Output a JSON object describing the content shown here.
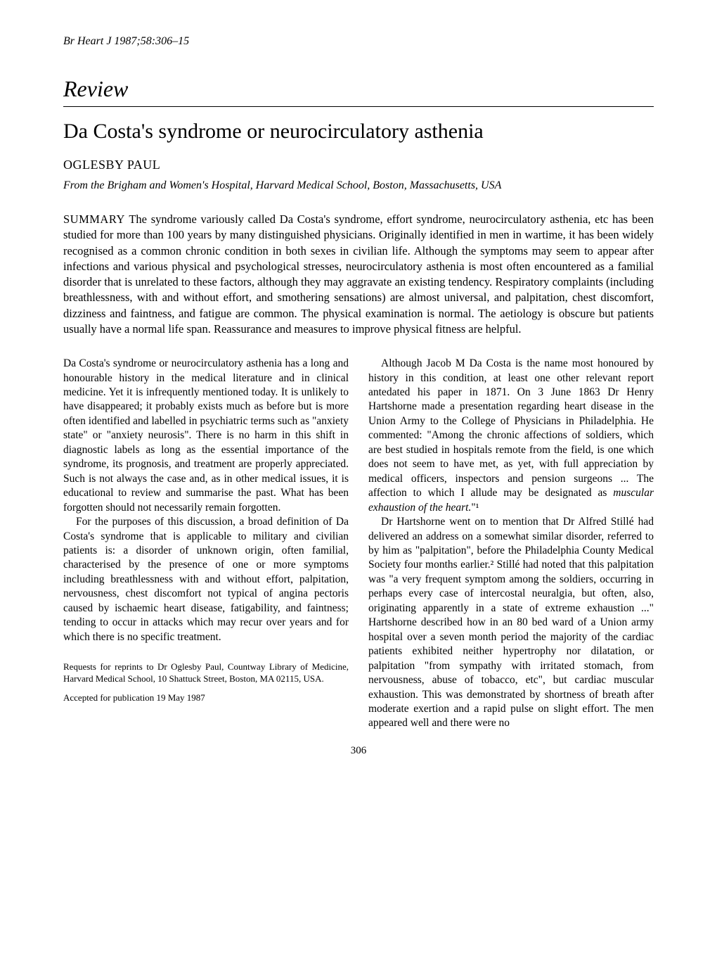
{
  "journal_ref": "Br Heart J 1987;58:306–15",
  "review_label": "Review",
  "title": "Da Costa's syndrome or neurocirculatory asthenia",
  "author": "OGLESBY PAUL",
  "affiliation": "From the Brigham and Women's Hospital, Harvard Medical School, Boston, Massachusetts, USA",
  "summary_label": "SUMMARY",
  "summary_text": " The syndrome variously called Da Costa's syndrome, effort syndrome, neurocirculatory asthenia, etc has been studied for more than 100 years by many distinguished physicians. Originally identified in men in wartime, it has been widely recognised as a common chronic condition in both sexes in civilian life. Although the symptoms may seem to appear after infections and various physical and psychological stresses, neurocirculatory asthenia is most often encountered as a familial disorder that is unrelated to these factors, although they may aggravate an existing tendency. Respiratory complaints (including breathlessness, with and without effort, and smothering sensations) are almost universal, and palpitation, chest discomfort, dizziness and faintness, and fatigue are common. The physical examination is normal. The aetiology is obscure but patients usually have a normal life span. Reassurance and measures to improve physical fitness are helpful.",
  "left_col": {
    "p1": "Da Costa's syndrome or neurocirculatory asthenia has a long and honourable history in the medical literature and in clinical medicine. Yet it is infrequently mentioned today. It is unlikely to have disappeared; it probably exists much as before but is more often identified and labelled in psychiatric terms such as \"anxiety state\" or \"anxiety neurosis\". There is no harm in this shift in diagnostic labels as long as the essential importance of the syndrome, its prognosis, and treatment are properly appreciated. Such is not always the case and, as in other medical issues, it is educational to review and summarise the past. What has been forgotten should not necessarily remain forgotten.",
    "p2": "For the purposes of this discussion, a broad definition of Da Costa's syndrome that is applicable to military and civilian patients is: a disorder of unknown origin, often familial, characterised by the presence of one or more symptoms including breathlessness with and without effort, palpitation, nervousness, chest discomfort not typical of angina pectoris caused by ischaemic heart disease, fatigability, and faintness; tending to occur in attacks which may recur over years and for which there is no specific treatment.",
    "reprint": "Requests for reprints to Dr Oglesby Paul, Countway Library of Medicine, Harvard Medical School, 10 Shattuck Street, Boston, MA 02115, USA.",
    "accepted": "Accepted for publication 19 May 1987"
  },
  "right_col": {
    "p1_a": "Although Jacob M Da Costa is the name most honoured by history in this condition, at least one other relevant report antedated his paper in 1871. On 3 June 1863 Dr Henry Hartshorne made a presentation regarding heart disease in the Union Army to the College of Physicians in Philadelphia. He commented: \"Among the chronic affections of soldiers, which are best studied in hospitals remote from the field, is one which does not seem to have met, as yet, with full appreciation by medical officers, inspectors and pension surgeons ... The affection to which I allude may be designated as ",
    "p1_em": "muscular exhaustion of the heart.",
    "p1_b": "\"¹",
    "p2": "Dr Hartshorne went on to mention that Dr Alfred Stillé had delivered an address on a somewhat similar disorder, referred to by him as \"palpitation\", before the Philadelphia County Medical Society four months earlier.² Stillé had noted that this palpitation was \"a very frequent symptom among the soldiers, occurring in perhaps every case of intercostal neuralgia, but often, also, originating apparently in a state of extreme exhaustion ...\" Hartshorne described how in an 80 bed ward of a Union army hospital over a seven month period the majority of the cardiac patients exhibited neither hypertrophy nor dilatation, or palpitation \"from sympathy with irritated stomach, from nervousness, abuse of tobacco, etc\", but cardiac muscular exhaustion. This was demonstrated by shortness of breath after moderate exertion and a rapid pulse on slight effort. The men appeared well and there were no"
  },
  "page_number": "306"
}
